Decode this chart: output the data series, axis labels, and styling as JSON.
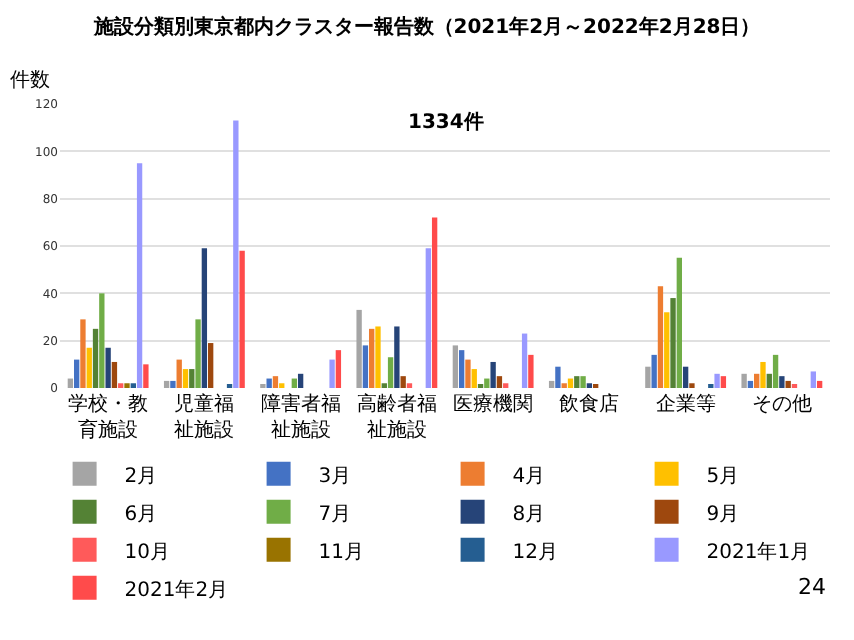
{
  "chart_data": {
    "type": "bar",
    "title": "施設分類別東京都内クラスター報告数（2021年2月～2022年2月28日）",
    "ylabel": "件数",
    "annotations": [
      "1334件",
      "24"
    ],
    "categories": [
      "学校・教育施設",
      "児童福祉施設",
      "障害者福祉施設",
      "高齢者福祉施設",
      "医療機関",
      "飲食店",
      "企業等",
      "その他"
    ],
    "series": [
      {
        "name": "2月",
        "color": "#a5a5a5",
        "values": [
          4,
          3,
          1,
          33,
          18,
          3,
          9,
          6
        ]
      },
      {
        "name": "3月",
        "color": "#4472c4",
        "values": [
          12,
          3,
          4,
          18,
          16,
          9,
          14,
          3
        ]
      },
      {
        "name": "4月",
        "color": "#ed7d31",
        "values": [
          29,
          12,
          5,
          25,
          12,
          2,
          43,
          6
        ]
      },
      {
        "name": "5月",
        "color": "#ffc000",
        "values": [
          17,
          8,
          2,
          26,
          8,
          4,
          32,
          11
        ]
      },
      {
        "name": "6月",
        "color": "#548235",
        "values": [
          25,
          8,
          0,
          2,
          1,
          5,
          38,
          6
        ]
      },
      {
        "name": "7月",
        "color": "#70ad47",
        "values": [
          40,
          29,
          4,
          13,
          4,
          5,
          55,
          14
        ]
      },
      {
        "name": "8月",
        "color": "#264478",
        "values": [
          17,
          59,
          6,
          26,
          11,
          2,
          9,
          5
        ]
      },
      {
        "name": "9月",
        "color": "#9e480e",
        "values": [
          11,
          19,
          0,
          5,
          5,
          1,
          2,
          3
        ]
      },
      {
        "name": "10月",
        "color": "#ff5a5a",
        "values": [
          2,
          0,
          0,
          2,
          2,
          0,
          0,
          1
        ]
      },
      {
        "name": "11月",
        "color": "#997300",
        "values": [
          2,
          0,
          0,
          0,
          0,
          0,
          0,
          0
        ]
      },
      {
        "name": "12月",
        "color": "#255e91",
        "values": [
          2,
          1,
          0,
          0,
          0,
          0,
          1,
          0
        ]
      },
      {
        "name": "2021年1月",
        "color": "#9999ff",
        "values": [
          95,
          113,
          12,
          59,
          23,
          0,
          6,
          7
        ]
      },
      {
        "name": "2021年2月",
        "color": "#ff4b4b",
        "values": [
          10,
          58,
          16,
          72,
          14,
          0,
          5,
          3
        ]
      }
    ],
    "ylim": [
      0,
      120
    ],
    "yticks": [
      0,
      20,
      40,
      60,
      80,
      100,
      120
    ],
    "grid": "y",
    "legend": "bottom"
  }
}
